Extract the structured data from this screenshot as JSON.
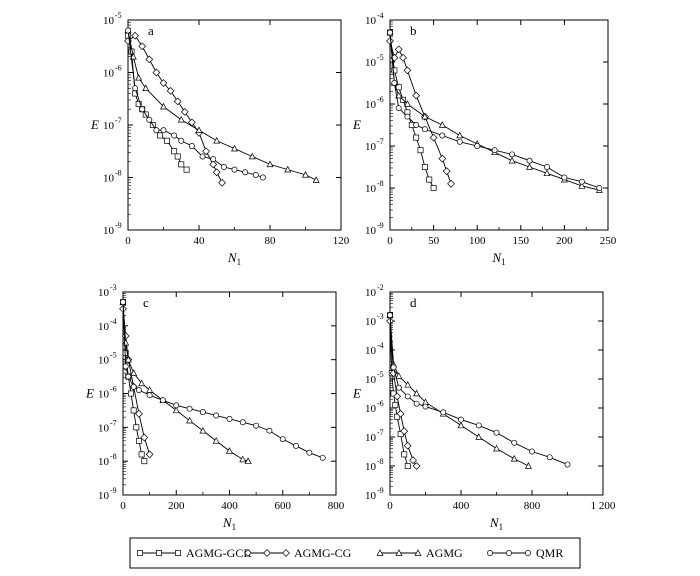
{
  "legend": [
    {
      "name": "AGMG-GCR",
      "marker": "square"
    },
    {
      "name": "AGMG-CG",
      "marker": "diamond"
    },
    {
      "name": "AGMG",
      "marker": "triangle"
    },
    {
      "name": "QMR",
      "marker": "circle"
    }
  ],
  "chart_data": [
    {
      "type": "line",
      "panel_label": "a",
      "xlabel": "N",
      "xlabel_sub": "1",
      "ylabel": "E",
      "xlim": [
        0,
        120
      ],
      "x_ticks": [
        0,
        40,
        80,
        120
      ],
      "x_tick_labels": [
        "0",
        "40",
        "80",
        "120"
      ],
      "ylim_exp": [
        -9,
        -5
      ],
      "y_tick_base": "10",
      "series": [
        {
          "name": "AGMG-GCR",
          "x": [
            0,
            2,
            4,
            6,
            8,
            10,
            14,
            18,
            22,
            26,
            28,
            30,
            33
          ],
          "y": [
            -5.3,
            -5.6,
            -6.4,
            -6.6,
            -6.7,
            -6.8,
            -7.0,
            -7.2,
            -7.3,
            -7.5,
            -7.6,
            -7.75,
            -7.85
          ]
        },
        {
          "name": "AGMG-CG",
          "x": [
            0,
            4,
            8,
            12,
            16,
            20,
            24,
            28,
            32,
            36,
            40,
            44,
            48,
            50,
            53
          ],
          "y": [
            -5.4,
            -5.3,
            -5.5,
            -5.75,
            -6.0,
            -6.2,
            -6.35,
            -6.55,
            -6.75,
            -6.95,
            -7.15,
            -7.5,
            -7.75,
            -7.9,
            -8.1
          ]
        },
        {
          "name": "AGMG",
          "x": [
            0,
            3,
            6,
            10,
            20,
            30,
            40,
            50,
            60,
            70,
            80,
            90,
            100,
            106
          ],
          "y": [
            -5.2,
            -5.7,
            -6.1,
            -6.3,
            -6.65,
            -6.9,
            -7.1,
            -7.3,
            -7.45,
            -7.6,
            -7.75,
            -7.85,
            -7.95,
            -8.05
          ]
        },
        {
          "name": "QMR",
          "x": [
            0,
            4,
            8,
            12,
            16,
            20,
            26,
            30,
            36,
            42,
            48,
            54,
            60,
            66,
            72,
            76
          ],
          "y": [
            -5.2,
            -6.3,
            -6.7,
            -6.9,
            -7.1,
            -7.1,
            -7.2,
            -7.3,
            -7.4,
            -7.6,
            -7.65,
            -7.8,
            -7.85,
            -7.9,
            -7.95,
            -8.0
          ]
        }
      ]
    },
    {
      "type": "line",
      "panel_label": "b",
      "xlabel": "N",
      "xlabel_sub": "1",
      "ylabel": "E",
      "xlim": [
        0,
        250
      ],
      "x_ticks": [
        0,
        50,
        100,
        150,
        200,
        250
      ],
      "x_tick_labels": [
        "0",
        "50",
        "100",
        "150",
        "200",
        "250"
      ],
      "ylim_exp": [
        -9,
        -4
      ],
      "y_tick_base": "10",
      "series": [
        {
          "name": "AGMG-GCR",
          "x": [
            0,
            5,
            10,
            15,
            20,
            25,
            30,
            35,
            40,
            45,
            50
          ],
          "y": [
            -4.3,
            -5.2,
            -5.6,
            -5.9,
            -6.2,
            -6.5,
            -6.8,
            -7.1,
            -7.5,
            -7.8,
            -8.0
          ]
        },
        {
          "name": "AGMG-CG",
          "x": [
            0,
            5,
            10,
            15,
            20,
            30,
            40,
            50,
            60,
            65,
            70
          ],
          "y": [
            -4.5,
            -4.9,
            -4.7,
            -4.9,
            -5.2,
            -5.8,
            -6.3,
            -6.8,
            -7.3,
            -7.6,
            -7.9
          ]
        },
        {
          "name": "AGMG",
          "x": [
            0,
            5,
            10,
            20,
            40,
            60,
            80,
            100,
            120,
            140,
            160,
            180,
            200,
            220,
            240
          ],
          "y": [
            -4.3,
            -5.5,
            -5.8,
            -6.0,
            -6.3,
            -6.5,
            -6.75,
            -6.95,
            -7.15,
            -7.35,
            -7.5,
            -7.65,
            -7.8,
            -7.95,
            -8.05
          ]
        },
        {
          "name": "QMR",
          "x": [
            0,
            5,
            10,
            20,
            30,
            40,
            60,
            80,
            100,
            120,
            140,
            160,
            180,
            200,
            220,
            240
          ],
          "y": [
            -4.3,
            -5.5,
            -6.1,
            -6.3,
            -6.5,
            -6.6,
            -6.75,
            -6.9,
            -7.0,
            -7.1,
            -7.2,
            -7.35,
            -7.5,
            -7.75,
            -7.85,
            -8.0
          ]
        }
      ]
    },
    {
      "type": "line",
      "panel_label": "c",
      "xlabel": "N",
      "xlabel_sub": "1",
      "ylabel": "E",
      "xlim": [
        0,
        800
      ],
      "x_ticks": [
        0,
        200,
        400,
        600,
        800
      ],
      "x_tick_labels": [
        "0",
        "200",
        "400",
        "600",
        "800"
      ],
      "ylim_exp": [
        -9,
        -3
      ],
      "y_tick_base": "10",
      "series": [
        {
          "name": "AGMG-GCR",
          "x": [
            0,
            10,
            20,
            30,
            40,
            50,
            60,
            70,
            80
          ],
          "y": [
            -3.3,
            -4.8,
            -5.5,
            -6.0,
            -6.5,
            -7.0,
            -7.4,
            -7.8,
            -8.0
          ]
        },
        {
          "name": "AGMG-CG",
          "x": [
            0,
            10,
            20,
            40,
            60,
            80,
            100
          ],
          "y": [
            -3.5,
            -4.3,
            -5.0,
            -5.8,
            -6.6,
            -7.3,
            -7.8
          ]
        },
        {
          "name": "AGMG",
          "x": [
            0,
            10,
            20,
            40,
            70,
            100,
            150,
            200,
            250,
            300,
            350,
            400,
            450,
            470
          ],
          "y": [
            -3.3,
            -4.5,
            -5.0,
            -5.4,
            -5.7,
            -5.9,
            -6.2,
            -6.5,
            -6.8,
            -7.1,
            -7.4,
            -7.7,
            -7.95,
            -8.0
          ]
        },
        {
          "name": "QMR",
          "x": [
            0,
            10,
            20,
            40,
            60,
            100,
            150,
            200,
            250,
            300,
            350,
            400,
            450,
            500,
            550,
            600,
            650,
            700,
            750
          ],
          "y": [
            -3.3,
            -5.2,
            -5.5,
            -5.8,
            -5.9,
            -6.05,
            -6.2,
            -6.35,
            -6.45,
            -6.55,
            -6.65,
            -6.75,
            -6.85,
            -6.95,
            -7.1,
            -7.35,
            -7.55,
            -7.75,
            -7.9
          ]
        }
      ]
    },
    {
      "type": "line",
      "panel_label": "d",
      "xlabel": "N",
      "xlabel_sub": "1",
      "ylabel": "E",
      "xlim": [
        0,
        1200
      ],
      "x_ticks": [
        0,
        400,
        800,
        1200
      ],
      "x_tick_labels": [
        "0",
        "400",
        "800",
        "1 200"
      ],
      "ylim_exp": [
        -9,
        -2
      ],
      "y_tick_base": "10",
      "series": [
        {
          "name": "AGMG-GCR",
          "x": [
            0,
            10,
            20,
            30,
            40,
            60,
            80,
            100
          ],
          "y": [
            -2.8,
            -4.8,
            -5.5,
            -5.9,
            -6.3,
            -6.9,
            -7.6,
            -8.0
          ]
        },
        {
          "name": "AGMG-CG",
          "x": [
            0,
            20,
            40,
            60,
            80,
            100,
            130,
            150
          ],
          "y": [
            -3.0,
            -4.8,
            -5.6,
            -6.2,
            -6.8,
            -7.3,
            -7.8,
            -8.0
          ]
        },
        {
          "name": "AGMG",
          "x": [
            0,
            20,
            50,
            100,
            150,
            200,
            300,
            400,
            500,
            600,
            700,
            780
          ],
          "y": [
            -2.8,
            -4.5,
            -4.9,
            -5.2,
            -5.5,
            -5.8,
            -6.2,
            -6.6,
            -7.0,
            -7.4,
            -7.75,
            -8.0
          ]
        },
        {
          "name": "QMR",
          "x": [
            0,
            20,
            50,
            100,
            150,
            200,
            300,
            400,
            500,
            600,
            700,
            800,
            900,
            1000
          ],
          "y": [
            -2.8,
            -4.6,
            -5.3,
            -5.6,
            -5.85,
            -5.95,
            -6.15,
            -6.4,
            -6.6,
            -6.85,
            -7.2,
            -7.5,
            -7.7,
            -7.95
          ]
        }
      ]
    }
  ]
}
